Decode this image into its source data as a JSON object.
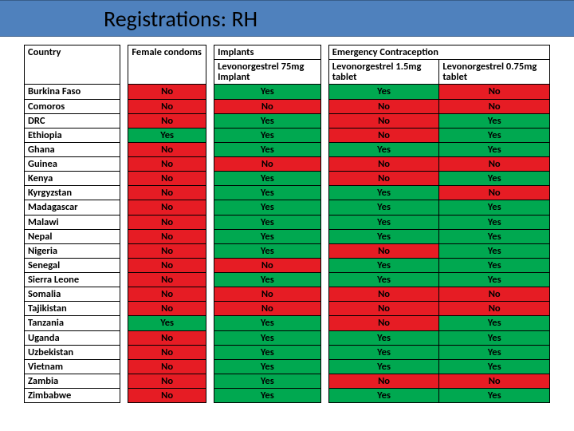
{
  "title": "Registrations: RH",
  "yes_color": "#00a850",
  "no_color": "#e61c24",
  "header_bg": "#4f81bd",
  "columns": {
    "country": "Country",
    "fc": "Female condoms",
    "implants_group": "Implants",
    "implants_sub": "Levonorgestrel 75mg Implant",
    "ec_group": "Emergency Contraception",
    "ec1": "Levonorgestrel 1.5mg tablet",
    "ec2": "Levonorgestrel 0.75mg tablet"
  },
  "rows": [
    {
      "c": "Burkina Faso",
      "fc": "No",
      "imp": "Yes",
      "ec1": "Yes",
      "ec2": "No"
    },
    {
      "c": "Comoros",
      "fc": "No",
      "imp": "No",
      "ec1": "No",
      "ec2": "No"
    },
    {
      "c": "DRC",
      "fc": "No",
      "imp": "Yes",
      "ec1": "No",
      "ec2": "Yes"
    },
    {
      "c": "Ethiopia",
      "fc": "Yes",
      "imp": "Yes",
      "ec1": "No",
      "ec2": "Yes"
    },
    {
      "c": "Ghana",
      "fc": "No",
      "imp": "Yes",
      "ec1": "Yes",
      "ec2": "Yes"
    },
    {
      "c": "Guinea",
      "fc": "No",
      "imp": "No",
      "ec1": "No",
      "ec2": "No"
    },
    {
      "c": "Kenya",
      "fc": "No",
      "imp": "Yes",
      "ec1": "No",
      "ec2": "Yes"
    },
    {
      "c": "Kyrgyzstan",
      "fc": "No",
      "imp": "Yes",
      "ec1": "Yes",
      "ec2": "No"
    },
    {
      "c": "Madagascar",
      "fc": "No",
      "imp": "Yes",
      "ec1": "Yes",
      "ec2": "Yes"
    },
    {
      "c": "Malawi",
      "fc": "No",
      "imp": "Yes",
      "ec1": "Yes",
      "ec2": "Yes"
    },
    {
      "c": "Nepal",
      "fc": "No",
      "imp": "Yes",
      "ec1": "Yes",
      "ec2": "Yes"
    },
    {
      "c": "Nigeria",
      "fc": "No",
      "imp": "Yes",
      "ec1": "No",
      "ec2": "Yes"
    },
    {
      "c": "Senegal",
      "fc": "No",
      "imp": "No",
      "ec1": "Yes",
      "ec2": "Yes"
    },
    {
      "c": "Sierra Leone",
      "fc": "No",
      "imp": "Yes",
      "ec1": "Yes",
      "ec2": "Yes"
    },
    {
      "c": "Somalia",
      "fc": "No",
      "imp": "No",
      "ec1": "No",
      "ec2": "No"
    },
    {
      "c": "Tajikistan",
      "fc": "No",
      "imp": "No",
      "ec1": "No",
      "ec2": "No"
    },
    {
      "c": "Tanzania",
      "fc": "Yes",
      "imp": "Yes",
      "ec1": "No",
      "ec2": "Yes"
    },
    {
      "c": "Uganda",
      "fc": "No",
      "imp": "Yes",
      "ec1": "Yes",
      "ec2": "Yes"
    },
    {
      "c": "Uzbekistan",
      "fc": "No",
      "imp": "Yes",
      "ec1": "Yes",
      "ec2": "Yes"
    },
    {
      "c": "Vietnam",
      "fc": "No",
      "imp": "Yes",
      "ec1": "Yes",
      "ec2": "Yes"
    },
    {
      "c": "Zambia",
      "fc": "No",
      "imp": "Yes",
      "ec1": "No",
      "ec2": "No"
    },
    {
      "c": "Zimbabwe",
      "fc": "No",
      "imp": "Yes",
      "ec1": "Yes",
      "ec2": "Yes"
    }
  ]
}
